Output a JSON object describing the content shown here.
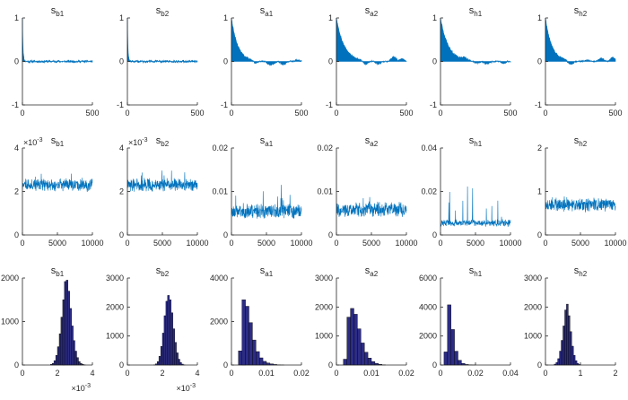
{
  "figure": {
    "colors": {
      "series": "#0072BD",
      "hist": "#2C2C86",
      "hist_edge": "#000000",
      "axis": "#262626"
    },
    "rows": [
      {
        "kind": "autocorrelation",
        "description_key": "lags 0-500, acf -1..1"
      },
      {
        "kind": "trace",
        "description_key": "iterations 0-10000"
      },
      {
        "kind": "histogram",
        "description_key": "posterior samples"
      }
    ]
  },
  "chart_data": [
    {
      "type": "area",
      "title": "s",
      "title_sub": "b1",
      "xlim": [
        0,
        500
      ],
      "ylim": [
        -1,
        1
      ],
      "xticks": [
        "0",
        "500"
      ],
      "yticks": [
        "-1",
        "0",
        "1"
      ],
      "series": [
        {
          "kind": "acf",
          "decay": 4,
          "noise": 0.03,
          "seed": 11,
          "bumps": []
        }
      ]
    },
    {
      "type": "area",
      "title": "s",
      "title_sub": "b2",
      "xlim": [
        0,
        500
      ],
      "ylim": [
        -1,
        1
      ],
      "xticks": [
        "0",
        "500"
      ],
      "yticks": [
        "-1",
        "0",
        "1"
      ],
      "series": [
        {
          "kind": "acf",
          "decay": 4,
          "noise": 0.03,
          "seed": 12,
          "bumps": []
        }
      ]
    },
    {
      "type": "area",
      "title": "s",
      "title_sub": "a1",
      "xlim": [
        0,
        500
      ],
      "ylim": [
        -1,
        1
      ],
      "xticks": [
        "0",
        "500"
      ],
      "yticks": [
        "-1",
        "0",
        "1"
      ],
      "series": [
        {
          "kind": "acf",
          "decay": 45,
          "noise": 0.02,
          "seed": 13,
          "bumps": [
            [
              170,
              -0.05,
              25
            ],
            [
              280,
              -0.08,
              30
            ],
            [
              370,
              -0.07,
              25
            ],
            [
              470,
              0.04,
              20
            ]
          ]
        }
      ]
    },
    {
      "type": "area",
      "title": "s",
      "title_sub": "a2",
      "xlim": [
        0,
        500
      ],
      "ylim": [
        -1,
        1
      ],
      "xticks": [
        "0",
        "500"
      ],
      "yticks": [
        "-1",
        "0",
        "1"
      ],
      "series": [
        {
          "kind": "acf",
          "decay": 55,
          "noise": 0.02,
          "seed": 14,
          "bumps": [
            [
              210,
              -0.08,
              25
            ],
            [
              300,
              -0.06,
              25
            ],
            [
              410,
              0.1,
              25
            ],
            [
              470,
              0.05,
              20
            ]
          ]
        }
      ]
    },
    {
      "type": "area",
      "title": "s",
      "title_sub": "h1",
      "xlim": [
        0,
        500
      ],
      "ylim": [
        -1,
        1
      ],
      "xticks": [
        "0",
        "500"
      ],
      "yticks": [
        "-1",
        "0",
        "1"
      ],
      "series": [
        {
          "kind": "acf",
          "decay": 55,
          "noise": 0.02,
          "seed": 15,
          "bumps": [
            [
              170,
              0.05,
              25
            ],
            [
              260,
              -0.05,
              25
            ],
            [
              330,
              -0.06,
              25
            ],
            [
              450,
              -0.04,
              20
            ]
          ]
        }
      ]
    },
    {
      "type": "area",
      "title": "s",
      "title_sub": "h2",
      "xlim": [
        0,
        500
      ],
      "ylim": [
        -1,
        1
      ],
      "xticks": [
        "0",
        "500"
      ],
      "yticks": [
        "-1",
        "0",
        "1"
      ],
      "series": [
        {
          "kind": "acf",
          "decay": 45,
          "noise": 0.02,
          "seed": 16,
          "bumps": [
            [
              180,
              -0.08,
              25
            ],
            [
              300,
              0.03,
              25
            ],
            [
              400,
              0.07,
              25
            ],
            [
              480,
              0.1,
              20
            ]
          ]
        }
      ]
    },
    {
      "type": "line",
      "title": "s",
      "title_sub": "b1",
      "xlim": [
        0,
        10000
      ],
      "ylim": [
        0,
        4
      ],
      "xticks": [
        "0",
        "5000",
        "10000"
      ],
      "yticks": [
        "0",
        "2",
        "4"
      ],
      "y_exponent": "-3",
      "series": [
        {
          "kind": "trace",
          "center": 2.3,
          "spread": 0.22,
          "spike": 0.6,
          "seed": 21
        }
      ]
    },
    {
      "type": "line",
      "title": "s",
      "title_sub": "b2",
      "xlim": [
        0,
        10000
      ],
      "ylim": [
        0,
        4
      ],
      "xticks": [
        "0",
        "5000",
        "10000"
      ],
      "yticks": [
        "0",
        "2",
        "4"
      ],
      "y_exponent": "-3",
      "series": [
        {
          "kind": "trace",
          "center": 2.3,
          "spread": 0.22,
          "spike": 0.7,
          "seed": 22
        }
      ]
    },
    {
      "type": "line",
      "title": "s",
      "title_sub": "a1",
      "xlim": [
        0,
        10000
      ],
      "ylim": [
        0,
        0.02
      ],
      "xticks": [
        "0",
        "5000",
        "10000"
      ],
      "yticks": [
        "0",
        "0.01",
        "0.02"
      ],
      "series": [
        {
          "kind": "trace",
          "center": 0.0055,
          "spread": 0.0013,
          "spike": 0.005,
          "seed": 23
        }
      ]
    },
    {
      "type": "line",
      "title": "s",
      "title_sub": "a2",
      "xlim": [
        0,
        10000
      ],
      "ylim": [
        0,
        0.02
      ],
      "xticks": [
        "0",
        "5000",
        "10000"
      ],
      "yticks": [
        "0",
        "0.01",
        "0.02"
      ],
      "series": [
        {
          "kind": "trace",
          "center": 0.0058,
          "spread": 0.0013,
          "spike": 0.004,
          "seed": 24
        }
      ]
    },
    {
      "type": "line",
      "title": "s",
      "title_sub": "h1",
      "xlim": [
        0,
        10000
      ],
      "ylim": [
        0,
        0.04
      ],
      "xticks": [
        "0",
        "5000",
        "10000"
      ],
      "yticks": [
        "0",
        "0.02",
        "0.04"
      ],
      "series": [
        {
          "kind": "trace",
          "center": 0.0055,
          "spread": 0.0012,
          "spike": 0.018,
          "seed": 25
        }
      ]
    },
    {
      "type": "line",
      "title": "s",
      "title_sub": "h2",
      "xlim": [
        0,
        10000
      ],
      "ylim": [
        0,
        2
      ],
      "xticks": [
        "0",
        "5000",
        "10000"
      ],
      "yticks": [
        "0",
        "1",
        "2"
      ],
      "series": [
        {
          "kind": "trace",
          "center": 0.7,
          "spread": 0.12,
          "spike": 0.3,
          "seed": 26
        }
      ]
    },
    {
      "type": "bar",
      "title": "s",
      "title_sub": "b1",
      "xlim": [
        0,
        4
      ],
      "ylim": [
        0,
        2000
      ],
      "xticks": [
        "0",
        "2",
        "4"
      ],
      "yticks": [
        "0",
        "1000",
        "2000"
      ],
      "x_exponent": "-3",
      "bins": {
        "start": 1.6,
        "width": 0.1,
        "counts": [
          15,
          40,
          100,
          220,
          420,
          720,
          1100,
          1500,
          1920,
          1950,
          1700,
          1300,
          900,
          560,
          320,
          170,
          80,
          35,
          15,
          5
        ]
      }
    },
    {
      "type": "bar",
      "title": "s",
      "title_sub": "b2",
      "xlim": [
        0,
        4
      ],
      "ylim": [
        0,
        3000
      ],
      "xticks": [
        "0",
        "2",
        "4"
      ],
      "yticks": [
        "0",
        "1000",
        "2000",
        "3000"
      ],
      "x_exponent": "-3",
      "bins": {
        "start": 1.5,
        "width": 0.1,
        "counts": [
          10,
          40,
          120,
          300,
          640,
          1100,
          1700,
          2200,
          2400,
          2250,
          1800,
          1250,
          780,
          420,
          200,
          90,
          30,
          10
        ]
      }
    },
    {
      "type": "bar",
      "title": "s",
      "title_sub": "a1",
      "xlim": [
        0,
        0.02
      ],
      "ylim": [
        0,
        4000
      ],
      "xticks": [
        "0",
        "0.01",
        "0.02"
      ],
      "yticks": [
        "0",
        "2000",
        "4000"
      ],
      "bins": {
        "start": 0.002,
        "width": 0.001,
        "counts": [
          650,
          3000,
          2700,
          1950,
          1150,
          620,
          330,
          170,
          90,
          50,
          25,
          12,
          5
        ]
      }
    },
    {
      "type": "bar",
      "title": "s",
      "title_sub": "a2",
      "xlim": [
        0,
        0.02
      ],
      "ylim": [
        0,
        3000
      ],
      "xticks": [
        "0",
        "0.01",
        "0.02"
      ],
      "yticks": [
        "0",
        "1000",
        "2000",
        "3000"
      ],
      "bins": {
        "start": 0.002,
        "width": 0.001,
        "counts": [
          200,
          1650,
          1950,
          1750,
          1250,
          760,
          440,
          240,
          120,
          60,
          25,
          10
        ]
      }
    },
    {
      "type": "bar",
      "title": "s",
      "title_sub": "h1",
      "xlim": [
        0,
        0.04
      ],
      "ylim": [
        0,
        6000
      ],
      "xticks": [
        "0",
        "0.02",
        "0.04"
      ],
      "yticks": [
        "0",
        "2000",
        "4000",
        "6000"
      ],
      "bins": {
        "start": 0.002,
        "width": 0.002,
        "counts": [
          900,
          4150,
          2450,
          950,
          330,
          110,
          40,
          15,
          5
        ]
      }
    },
    {
      "type": "bar",
      "title": "s",
      "title_sub": "h2",
      "xlim": [
        0,
        2
      ],
      "ylim": [
        0,
        3000
      ],
      "xticks": [
        "0",
        "1",
        "2"
      ],
      "yticks": [
        "0",
        "1000",
        "2000",
        "3000"
      ],
      "bins": {
        "start": 0.25,
        "width": 0.05,
        "counts": [
          30,
          90,
          220,
          480,
          850,
          1350,
          1900,
          2100,
          1700,
          1150,
          650,
          330,
          150,
          60,
          20
        ]
      }
    }
  ]
}
